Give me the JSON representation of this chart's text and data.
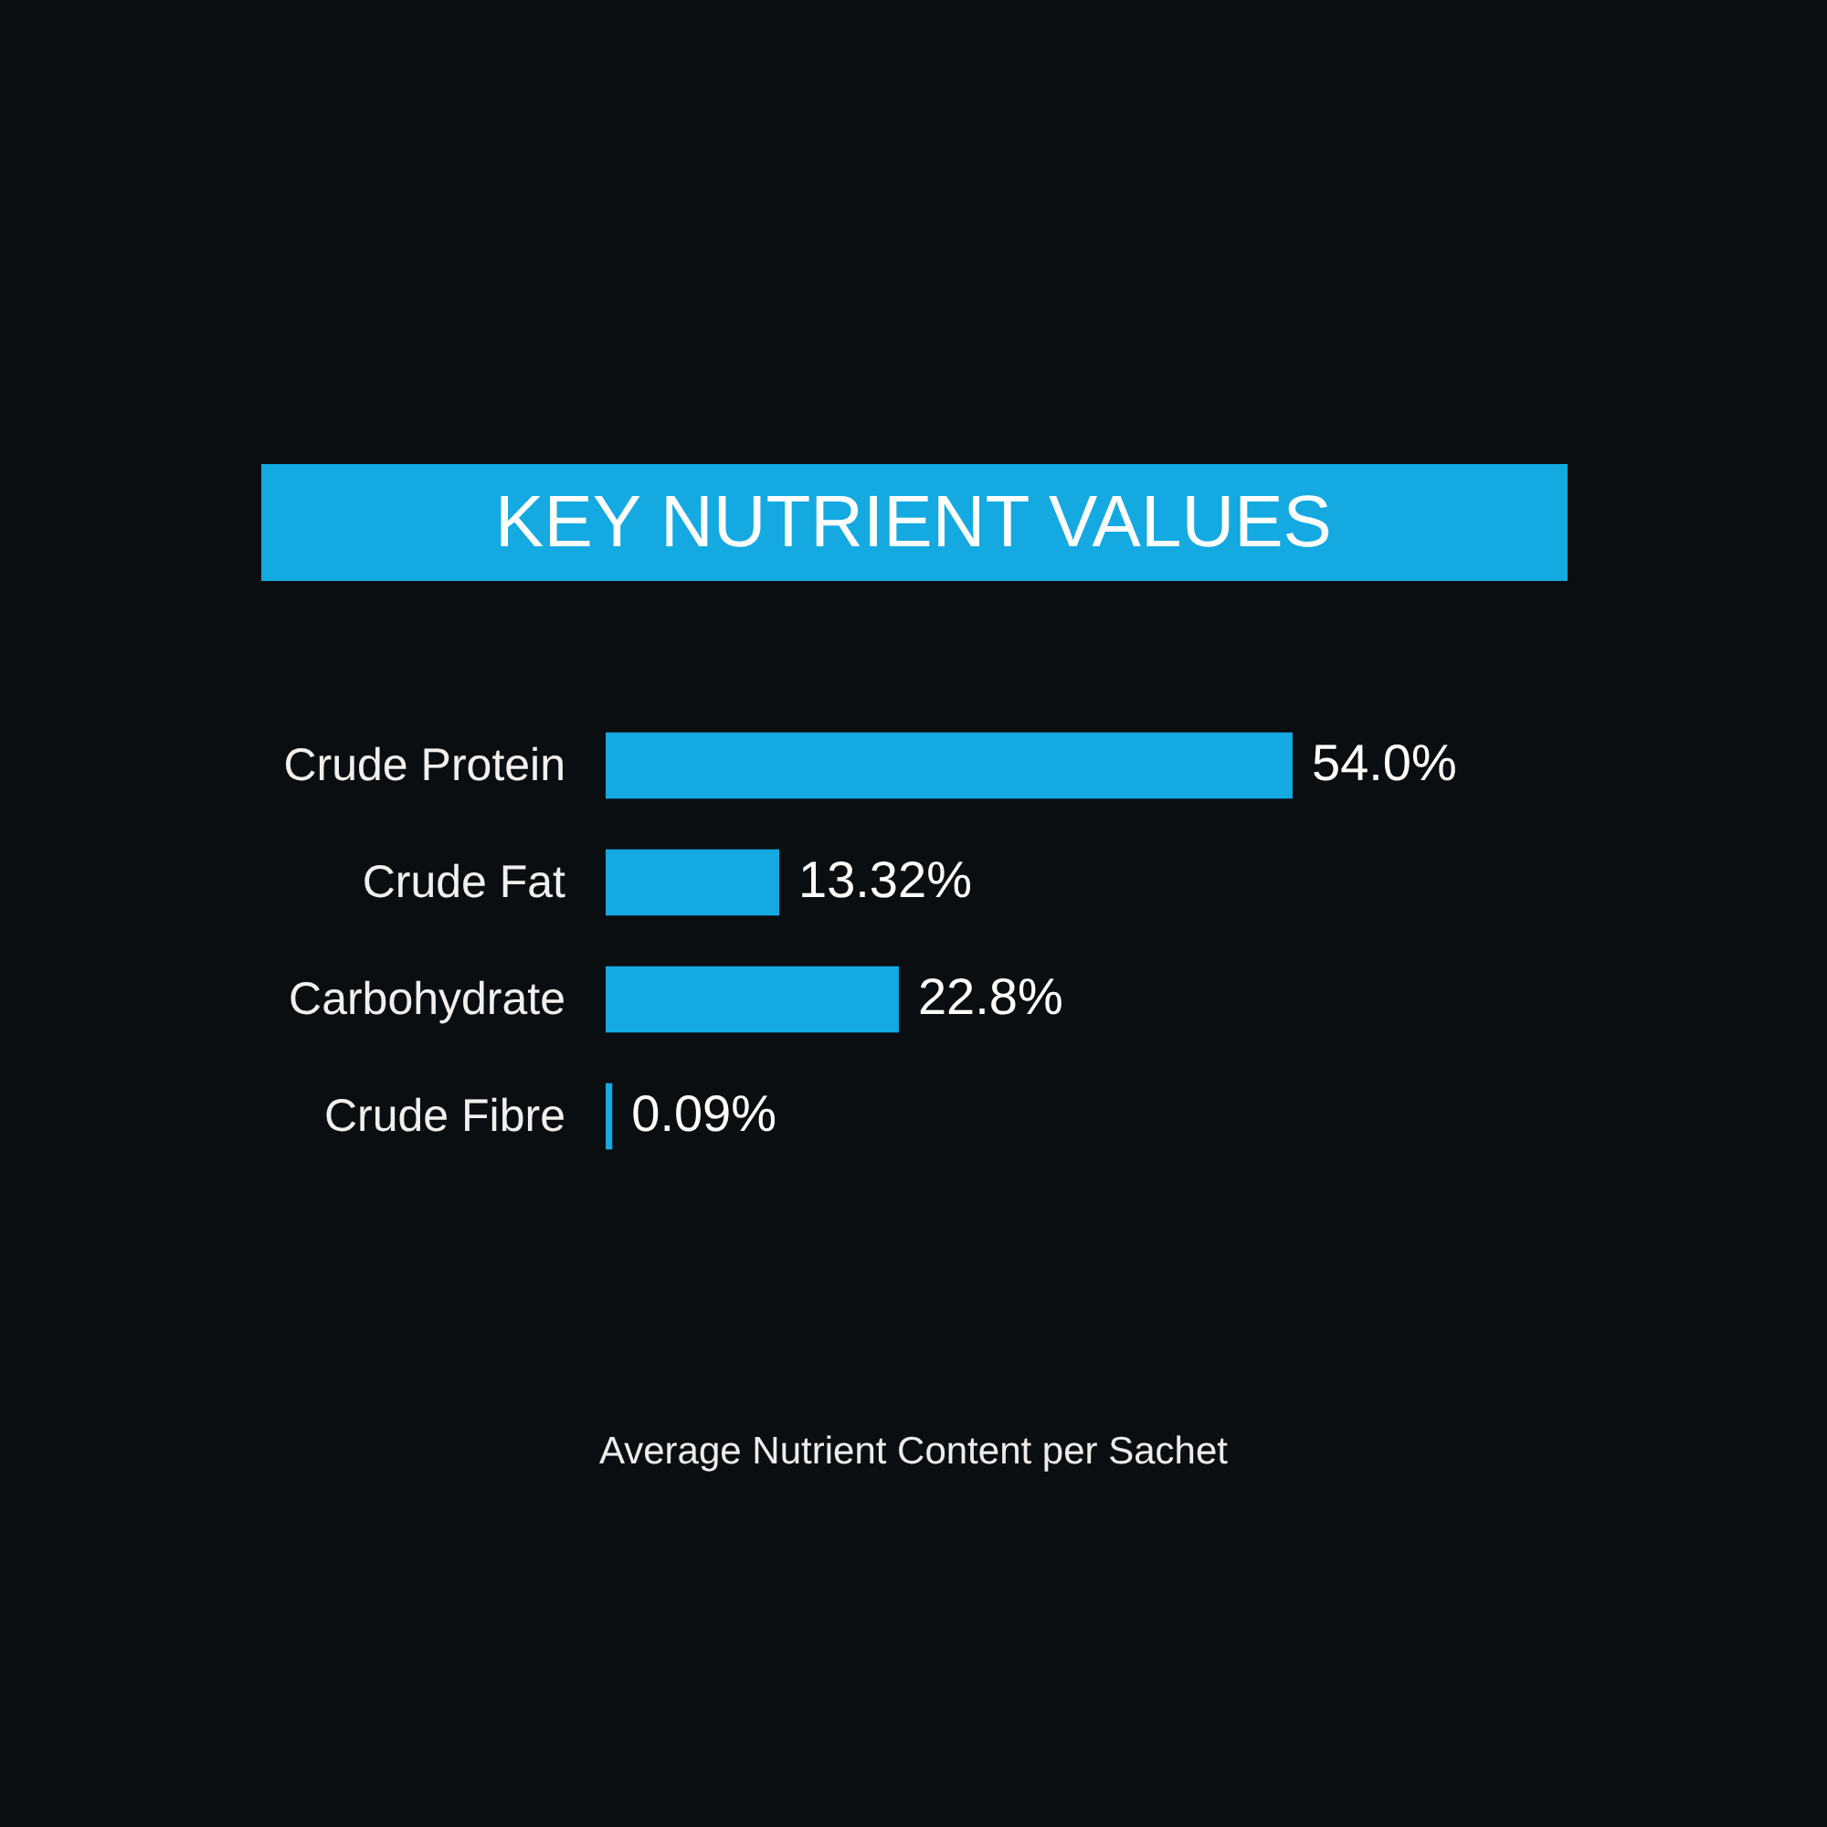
{
  "chart_data": {
    "type": "bar",
    "orientation": "horizontal",
    "title": "KEY NUTRIENT VALUES",
    "categories": [
      "Crude Protein",
      "Crude Fat",
      "Carbohydrate",
      "Crude Fibre"
    ],
    "values": [
      54.0,
      13.32,
      22.8,
      0.09
    ],
    "value_labels": [
      "54.0%",
      "13.32%",
      "22.8%",
      "0.09%"
    ],
    "color": "#14a9e1",
    "annotations": [
      "Average Nutrient Content per Sachet"
    ]
  }
}
